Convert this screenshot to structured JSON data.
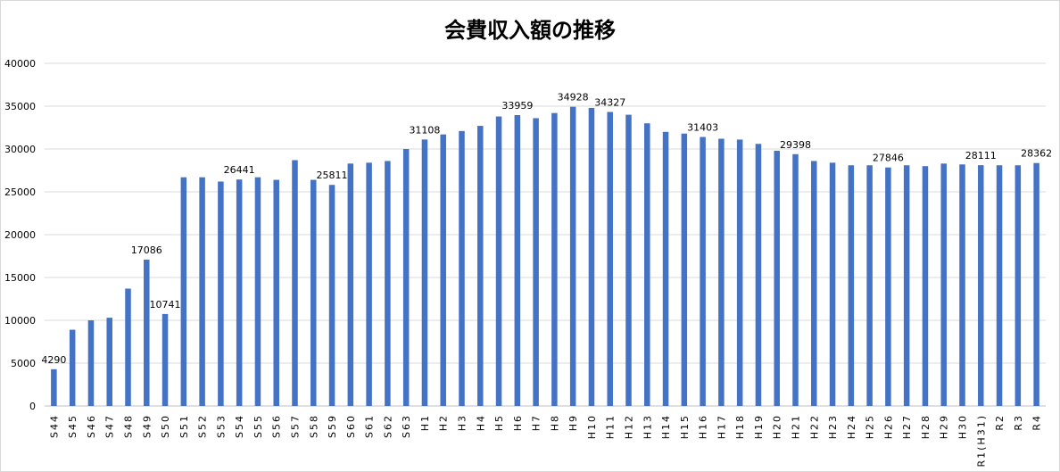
{
  "chart_data": {
    "type": "bar",
    "title": "会費収入額の推移",
    "ylim": [
      0,
      40000
    ],
    "yticks": [
      0,
      5000,
      10000,
      15000,
      20000,
      25000,
      30000,
      35000,
      40000
    ],
    "grid": true,
    "bar_color": "#4472C4",
    "categories": [
      "S44",
      "S45",
      "S46",
      "S47",
      "S48",
      "S49",
      "S50",
      "S51",
      "S52",
      "S53",
      "S54",
      "S55",
      "S56",
      "S57",
      "S58",
      "S59",
      "S60",
      "S61",
      "S62",
      "S63",
      "H1",
      "H2",
      "H3",
      "H4",
      "H5",
      "H6",
      "H7",
      "H8",
      "H9",
      "H10",
      "H11",
      "H12",
      "H13",
      "H14",
      "H15",
      "H16",
      "H17",
      "H18",
      "H19",
      "H20",
      "H21",
      "H22",
      "H23",
      "H24",
      "H25",
      "H26",
      "H27",
      "H28",
      "H29",
      "H30",
      "R1(H31)",
      "R2",
      "R3",
      "R4"
    ],
    "values": [
      4290,
      8900,
      10000,
      10300,
      13700,
      17086,
      10741,
      26700,
      26700,
      26200,
      26441,
      26700,
      26400,
      28700,
      26400,
      25811,
      28300,
      28400,
      28600,
      30000,
      31108,
      31700,
      32100,
      32700,
      33800,
      33959,
      33600,
      34200,
      34928,
      34800,
      34327,
      34000,
      33000,
      32000,
      31800,
      31403,
      31200,
      31100,
      30600,
      29800,
      29398,
      28600,
      28400,
      28100,
      28100,
      27846,
      28100,
      28000,
      28300,
      28200,
      28111,
      28100,
      28100,
      28362
    ],
    "data_labels": {
      "0": "4290",
      "5": "17086",
      "6": "10741",
      "10": "26441",
      "15": "25811",
      "20": "31108",
      "25": "33959",
      "28": "34928",
      "30": "34327",
      "35": "31403",
      "40": "29398",
      "45": "27846",
      "50": "28111",
      "53": "28362"
    }
  }
}
